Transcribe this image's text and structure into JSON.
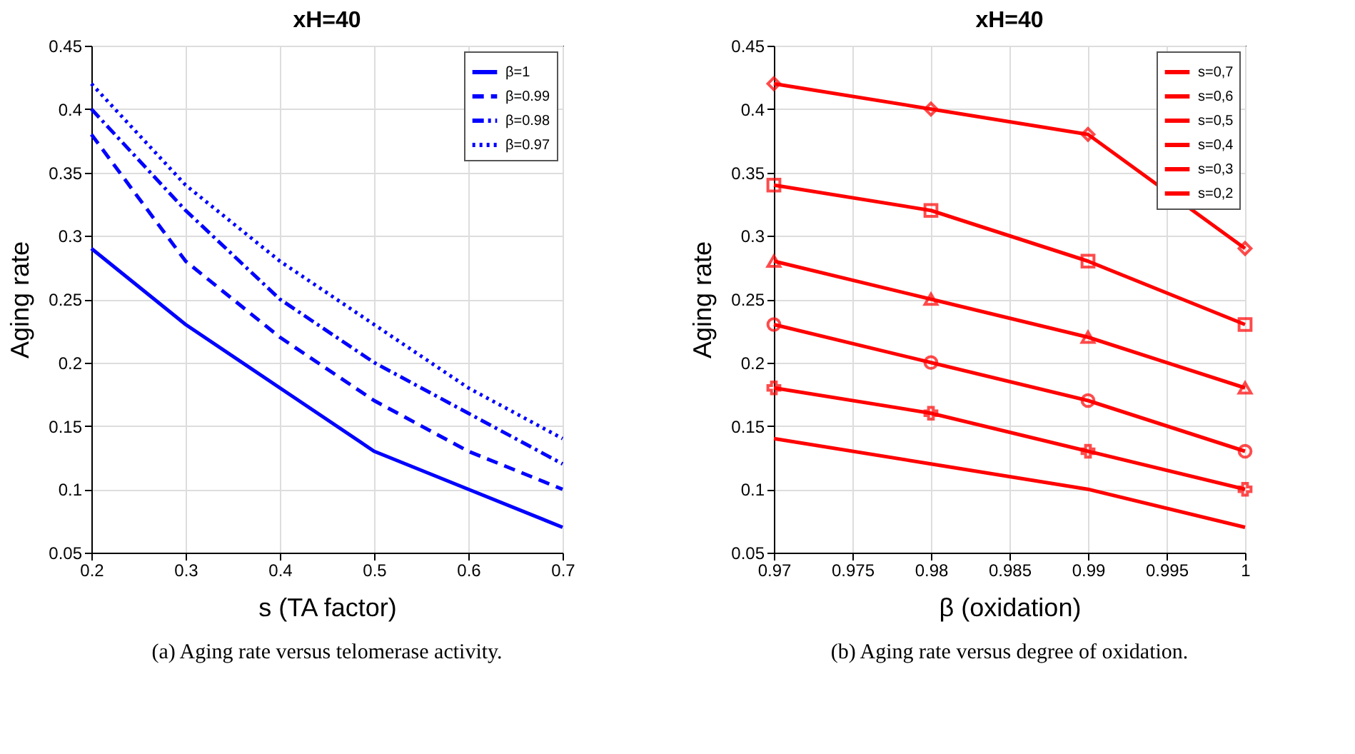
{
  "chart_data": [
    {
      "type": "line",
      "title": "xH=40",
      "xlabel": "s (TA factor)",
      "ylabel": "Aging rate",
      "x": [
        0.2,
        0.3,
        0.4,
        0.5,
        0.6,
        0.7
      ],
      "series": [
        {
          "name": "β=1",
          "color": "#0000ff",
          "line_style": "solid",
          "values": [
            0.29,
            0.23,
            0.18,
            0.13,
            0.1,
            0.07
          ]
        },
        {
          "name": "β=0.99",
          "color": "#0000ff",
          "line_style": "dashed",
          "values": [
            0.38,
            0.28,
            0.22,
            0.17,
            0.13,
            0.1
          ]
        },
        {
          "name": "β=0.98",
          "color": "#0000ff",
          "line_style": "dashdot",
          "values": [
            0.4,
            0.32,
            0.25,
            0.2,
            0.16,
            0.12
          ]
        },
        {
          "name": "β=0.97",
          "color": "#0000ff",
          "line_style": "dotted",
          "values": [
            0.42,
            0.34,
            0.28,
            0.23,
            0.18,
            0.14
          ]
        }
      ],
      "xlim": [
        0.2,
        0.7
      ],
      "xticks": [
        0.2,
        0.3,
        0.4,
        0.5,
        0.6,
        0.7
      ],
      "ylim": [
        0.05,
        0.45
      ],
      "yticks": [
        0.05,
        0.1,
        0.15,
        0.2,
        0.25,
        0.3,
        0.35,
        0.4,
        0.45
      ],
      "grid": true,
      "legend": "top right",
      "annotations": [
        "(a)  Aging rate versus telomerase activity."
      ]
    },
    {
      "type": "line",
      "title": "xH=40",
      "xlabel": "β (oxidation)",
      "ylabel": "Aging rate",
      "x": [
        0.97,
        0.98,
        0.99,
        1
      ],
      "series": [
        {
          "name": "s=0,7",
          "color": "#ff0000",
          "marker": "none",
          "values": [
            0.14,
            0.12,
            0.1,
            0.07
          ]
        },
        {
          "name": "s=0,6",
          "color": "#ff0000",
          "marker": "cross",
          "values": [
            0.18,
            0.16,
            0.13,
            0.1
          ]
        },
        {
          "name": "s=0,5",
          "color": "#ff0000",
          "marker": "circle",
          "values": [
            0.23,
            0.2,
            0.17,
            0.13
          ]
        },
        {
          "name": "s=0,4",
          "color": "#ff0000",
          "marker": "triangle",
          "values": [
            0.28,
            0.25,
            0.22,
            0.18
          ]
        },
        {
          "name": "s=0,3",
          "color": "#ff0000",
          "marker": "square",
          "values": [
            0.34,
            0.32,
            0.28,
            0.23
          ]
        },
        {
          "name": "s=0,2",
          "color": "#ff0000",
          "marker": "diamond",
          "values": [
            0.42,
            0.4,
            0.38,
            0.29
          ]
        }
      ],
      "xlim": [
        0.97,
        1
      ],
      "xticks": [
        0.97,
        0.975,
        0.98,
        0.985,
        0.99,
        0.995,
        1
      ],
      "ylim": [
        0.05,
        0.45
      ],
      "yticks": [
        0.05,
        0.1,
        0.15,
        0.2,
        0.25,
        0.3,
        0.35,
        0.4,
        0.45
      ],
      "grid": true,
      "legend": "top right",
      "annotations": [
        "(b)  Aging rate versus degree of oxidation."
      ]
    }
  ]
}
